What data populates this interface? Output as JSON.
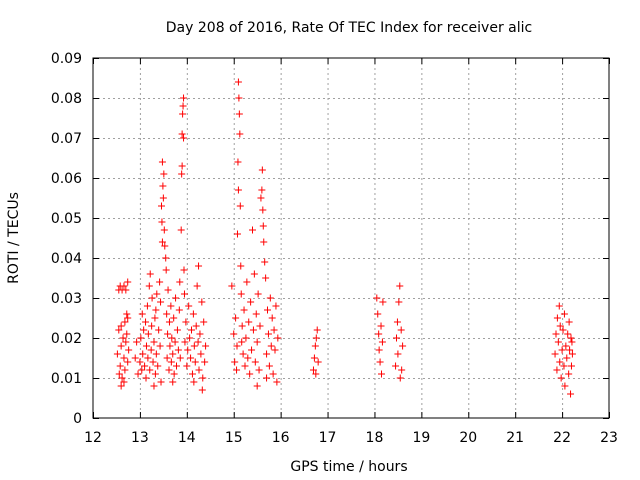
{
  "chart_data": {
    "type": "scatter",
    "title": "Day 208 of 2016, Rate Of TEC Index for receiver alic",
    "xlabel": "GPS time / hours",
    "ylabel": "ROTI / TECUs",
    "xlim": [
      12,
      23
    ],
    "ylim": [
      0,
      0.09
    ],
    "x_ticks": [
      12,
      13,
      14,
      15,
      16,
      17,
      18,
      19,
      20,
      21,
      22,
      23
    ],
    "x_tick_labels": [
      "12",
      "13",
      "14",
      "15",
      "16",
      "17",
      "18",
      "19",
      "20",
      "21",
      "22",
      "23"
    ],
    "y_ticks": [
      0,
      0.01,
      0.02,
      0.03,
      0.04,
      0.05,
      0.06,
      0.07,
      0.08,
      0.09
    ],
    "y_tick_labels": [
      "0",
      "0.01",
      "0.02",
      "0.03",
      "0.04",
      "0.05",
      "0.06",
      "0.07",
      "0.08",
      "0.09"
    ],
    "grid": true,
    "marker": "+",
    "color": "#ff0000",
    "series": [
      {
        "name": "ROTI",
        "points": [
          [
            12.52,
            0.016
          ],
          [
            12.55,
            0.022
          ],
          [
            12.58,
            0.013
          ],
          [
            12.6,
            0.018
          ],
          [
            12.62,
            0.01
          ],
          [
            12.64,
            0.02
          ],
          [
            12.66,
            0.015
          ],
          [
            12.68,
            0.012
          ],
          [
            12.7,
            0.019
          ],
          [
            12.72,
            0.021
          ],
          [
            12.74,
            0.014
          ],
          [
            12.76,
            0.017
          ],
          [
            12.56,
            0.011
          ],
          [
            12.6,
            0.023
          ],
          [
            12.66,
            0.009
          ],
          [
            12.72,
            0.026
          ],
          [
            12.74,
            0.025
          ],
          [
            12.55,
            0.032
          ],
          [
            12.58,
            0.033
          ],
          [
            12.62,
            0.032
          ],
          [
            12.66,
            0.033
          ],
          [
            12.7,
            0.032
          ],
          [
            12.74,
            0.034
          ],
          [
            12.6,
            0.008
          ],
          [
            12.68,
            0.024
          ],
          [
            12.9,
            0.015
          ],
          [
            12.93,
            0.019
          ],
          [
            12.96,
            0.011
          ],
          [
            13.0,
            0.014
          ],
          [
            13.02,
            0.02
          ],
          [
            13.04,
            0.012
          ],
          [
            13.05,
            0.026
          ],
          [
            13.06,
            0.016
          ],
          [
            13.08,
            0.022
          ],
          [
            13.1,
            0.013
          ],
          [
            13.12,
            0.024
          ],
          [
            13.13,
            0.01
          ],
          [
            13.14,
            0.018
          ],
          [
            13.16,
            0.028
          ],
          [
            13.17,
            0.015
          ],
          [
            13.18,
            0.021
          ],
          [
            13.2,
            0.033
          ],
          [
            13.21,
            0.012
          ],
          [
            13.22,
            0.036
          ],
          [
            13.24,
            0.017
          ],
          [
            13.25,
            0.023
          ],
          [
            13.26,
            0.03
          ],
          [
            13.28,
            0.014
          ],
          [
            13.3,
            0.019
          ],
          [
            13.32,
            0.025
          ],
          [
            13.33,
            0.011
          ],
          [
            13.34,
            0.027
          ],
          [
            13.35,
            0.016
          ],
          [
            13.36,
            0.031
          ],
          [
            13.38,
            0.013
          ],
          [
            13.4,
            0.022
          ],
          [
            13.42,
            0.034
          ],
          [
            13.43,
            0.018
          ],
          [
            13.44,
            0.029
          ],
          [
            13.45,
            0.009
          ],
          [
            13.46,
            0.053
          ],
          [
            13.47,
            0.049
          ],
          [
            13.48,
            0.044
          ],
          [
            13.48,
            0.064
          ],
          [
            13.49,
            0.058
          ],
          [
            13.5,
            0.055
          ],
          [
            13.51,
            0.061
          ],
          [
            13.52,
            0.047
          ],
          [
            13.53,
            0.043
          ],
          [
            13.55,
            0.04
          ],
          [
            13.56,
            0.037
          ],
          [
            13.57,
            0.026
          ],
          [
            13.58,
            0.015
          ],
          [
            13.59,
            0.021
          ],
          [
            13.6,
            0.032
          ],
          [
            13.62,
            0.012
          ],
          [
            13.63,
            0.024
          ],
          [
            13.64,
            0.018
          ],
          [
            13.66,
            0.028
          ],
          [
            13.67,
            0.014
          ],
          [
            13.68,
            0.02
          ],
          [
            13.7,
            0.016
          ],
          [
            13.72,
            0.025
          ],
          [
            13.73,
            0.011
          ],
          [
            13.75,
            0.019
          ],
          [
            13.76,
            0.03
          ],
          [
            13.78,
            0.013
          ],
          [
            13.8,
            0.022
          ],
          [
            13.82,
            0.017
          ],
          [
            13.84,
            0.027
          ],
          [
            13.85,
            0.034
          ],
          [
            13.86,
            0.015
          ],
          [
            13.88,
            0.047
          ],
          [
            13.89,
            0.061
          ],
          [
            13.9,
            0.063
          ],
          [
            13.9,
            0.071
          ],
          [
            13.91,
            0.076
          ],
          [
            13.92,
            0.078
          ],
          [
            13.93,
            0.08
          ],
          [
            13.93,
            0.07
          ],
          [
            13.94,
            0.037
          ],
          [
            13.95,
            0.031
          ],
          [
            13.96,
            0.019
          ],
          [
            13.98,
            0.024
          ],
          [
            14.0,
            0.013
          ],
          [
            14.02,
            0.017
          ],
          [
            14.04,
            0.028
          ],
          [
            14.06,
            0.02
          ],
          [
            14.08,
            0.015
          ],
          [
            14.1,
            0.022
          ],
          [
            14.12,
            0.011
          ],
          [
            14.14,
            0.026
          ],
          [
            14.16,
            0.018
          ],
          [
            14.18,
            0.014
          ],
          [
            14.2,
            0.023
          ],
          [
            14.22,
            0.033
          ],
          [
            14.24,
            0.019
          ],
          [
            14.25,
            0.038
          ],
          [
            14.26,
            0.012
          ],
          [
            14.28,
            0.021
          ],
          [
            14.3,
            0.016
          ],
          [
            14.32,
            0.029
          ],
          [
            14.34,
            0.01
          ],
          [
            14.36,
            0.024
          ],
          [
            14.38,
            0.014
          ],
          [
            14.4,
            0.018
          ],
          [
            14.33,
            0.007
          ],
          [
            13.3,
            0.008
          ],
          [
            13.7,
            0.009
          ],
          [
            14.15,
            0.009
          ],
          [
            14.96,
            0.033
          ],
          [
            15.0,
            0.021
          ],
          [
            15.02,
            0.014
          ],
          [
            15.04,
            0.025
          ],
          [
            15.06,
            0.012
          ],
          [
            15.07,
            0.018
          ],
          [
            15.08,
            0.046
          ],
          [
            15.09,
            0.064
          ],
          [
            15.1,
            0.057
          ],
          [
            15.1,
            0.084
          ],
          [
            15.11,
            0.08
          ],
          [
            15.12,
            0.076
          ],
          [
            15.13,
            0.071
          ],
          [
            15.14,
            0.053
          ],
          [
            15.15,
            0.038
          ],
          [
            15.16,
            0.031
          ],
          [
            15.17,
            0.019
          ],
          [
            15.18,
            0.023
          ],
          [
            15.2,
            0.016
          ],
          [
            15.22,
            0.027
          ],
          [
            15.24,
            0.013
          ],
          [
            15.26,
            0.02
          ],
          [
            15.28,
            0.034
          ],
          [
            15.3,
            0.015
          ],
          [
            15.32,
            0.024
          ],
          [
            15.34,
            0.011
          ],
          [
            15.36,
            0.029
          ],
          [
            15.38,
            0.017
          ],
          [
            15.4,
            0.047
          ],
          [
            15.42,
            0.022
          ],
          [
            15.44,
            0.036
          ],
          [
            15.46,
            0.014
          ],
          [
            15.48,
            0.026
          ],
          [
            15.5,
            0.019
          ],
          [
            15.52,
            0.031
          ],
          [
            15.54,
            0.012
          ],
          [
            15.56,
            0.023
          ],
          [
            15.58,
            0.055
          ],
          [
            15.6,
            0.057
          ],
          [
            15.61,
            0.062
          ],
          [
            15.62,
            0.052
          ],
          [
            15.63,
            0.048
          ],
          [
            15.64,
            0.044
          ],
          [
            15.66,
            0.039
          ],
          [
            15.68,
            0.035
          ],
          [
            15.7,
            0.016
          ],
          [
            15.72,
            0.027
          ],
          [
            15.74,
            0.021
          ],
          [
            15.76,
            0.013
          ],
          [
            15.78,
            0.03
          ],
          [
            15.8,
            0.018
          ],
          [
            15.82,
            0.025
          ],
          [
            15.84,
            0.011
          ],
          [
            15.86,
            0.022
          ],
          [
            15.88,
            0.017
          ],
          [
            15.9,
            0.028
          ],
          [
            15.92,
            0.009
          ],
          [
            15.94,
            0.02
          ],
          [
            15.5,
            0.008
          ],
          [
            15.7,
            0.01
          ],
          [
            16.7,
            0.012
          ],
          [
            16.72,
            0.015
          ],
          [
            16.74,
            0.018
          ],
          [
            16.76,
            0.02
          ],
          [
            16.78,
            0.022
          ],
          [
            16.8,
            0.014
          ],
          [
            16.75,
            0.011
          ],
          [
            18.05,
            0.03
          ],
          [
            18.07,
            0.026
          ],
          [
            18.09,
            0.021
          ],
          [
            18.1,
            0.017
          ],
          [
            18.12,
            0.014
          ],
          [
            18.14,
            0.023
          ],
          [
            18.15,
            0.011
          ],
          [
            18.17,
            0.019
          ],
          [
            18.18,
            0.029
          ],
          [
            18.45,
            0.013
          ],
          [
            18.47,
            0.02
          ],
          [
            18.49,
            0.024
          ],
          [
            18.5,
            0.016
          ],
          [
            18.52,
            0.029
          ],
          [
            18.54,
            0.033
          ],
          [
            18.55,
            0.01
          ],
          [
            18.57,
            0.022
          ],
          [
            18.58,
            0.012
          ],
          [
            18.6,
            0.018
          ],
          [
            21.85,
            0.016
          ],
          [
            21.87,
            0.021
          ],
          [
            21.89,
            0.012
          ],
          [
            21.9,
            0.025
          ],
          [
            21.92,
            0.019
          ],
          [
            21.94,
            0.028
          ],
          [
            21.95,
            0.014
          ],
          [
            21.96,
            0.023
          ],
          [
            21.98,
            0.01
          ],
          [
            22.0,
            0.017
          ],
          [
            22.02,
            0.022
          ],
          [
            22.04,
            0.013
          ],
          [
            22.05,
            0.026
          ],
          [
            22.06,
            0.008
          ],
          [
            22.08,
            0.018
          ],
          [
            22.1,
            0.015
          ],
          [
            22.12,
            0.021
          ],
          [
            22.14,
            0.011
          ],
          [
            22.15,
            0.024
          ],
          [
            22.16,
            0.017
          ],
          [
            22.18,
            0.006
          ],
          [
            22.19,
            0.02
          ],
          [
            22.2,
            0.013
          ],
          [
            22.21,
            0.019
          ],
          [
            22.22,
            0.016
          ]
        ]
      }
    ]
  }
}
